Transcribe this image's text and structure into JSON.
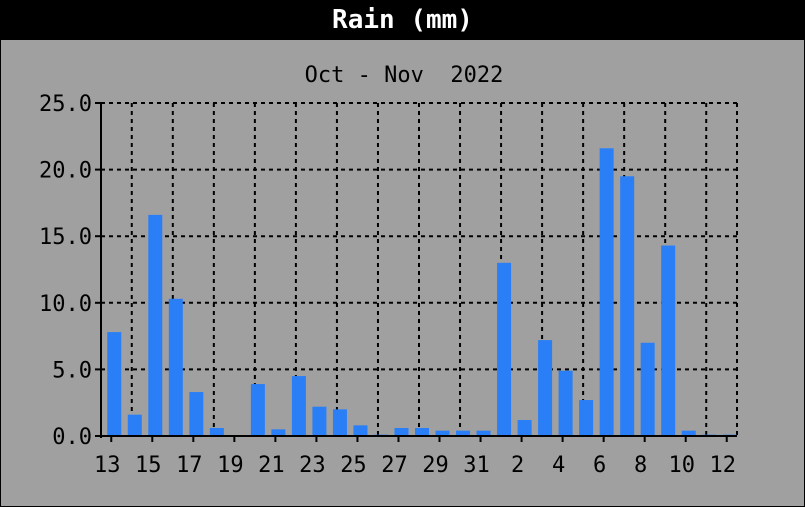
{
  "header": {
    "title": "Rain (mm)"
  },
  "chart_data": {
    "type": "bar",
    "title": "Oct - Nov  2022",
    "xlabel": "",
    "ylabel": "",
    "ylim": [
      0,
      25
    ],
    "y_ticks": [
      "0.0",
      "5.0",
      "10.0",
      "15.0",
      "20.0",
      "25.0"
    ],
    "grid": true,
    "categories": [
      "13",
      "14",
      "15",
      "16",
      "17",
      "18",
      "19",
      "20",
      "21",
      "22",
      "23",
      "24",
      "25",
      "26",
      "27",
      "28",
      "29",
      "30",
      "31",
      "1",
      "2",
      "3",
      "4",
      "5",
      "6",
      "7",
      "8",
      "9",
      "10",
      "11",
      "12"
    ],
    "x_tick_labels": [
      "13",
      "15",
      "17",
      "19",
      "21",
      "23",
      "25",
      "27",
      "29",
      "31",
      "2",
      "4",
      "6",
      "8",
      "10",
      "12"
    ],
    "series": [
      {
        "values": [
          7.8,
          1.6,
          16.6,
          10.3,
          3.3,
          0.6,
          0.0,
          3.9,
          0.5,
          4.5,
          2.2,
          2.0,
          0.8,
          0.1,
          0.6,
          0.6,
          0.4,
          0.4,
          0.4,
          13.0,
          1.2,
          7.2,
          4.9,
          2.7,
          21.6,
          19.5,
          7.0,
          14.3,
          0.4,
          0.1,
          0.1
        ],
        "color": "#2a7ff7"
      }
    ],
    "colors": {
      "background": "#a0a0a0",
      "grid": "#000000",
      "bar": "#2a7ff7"
    }
  }
}
